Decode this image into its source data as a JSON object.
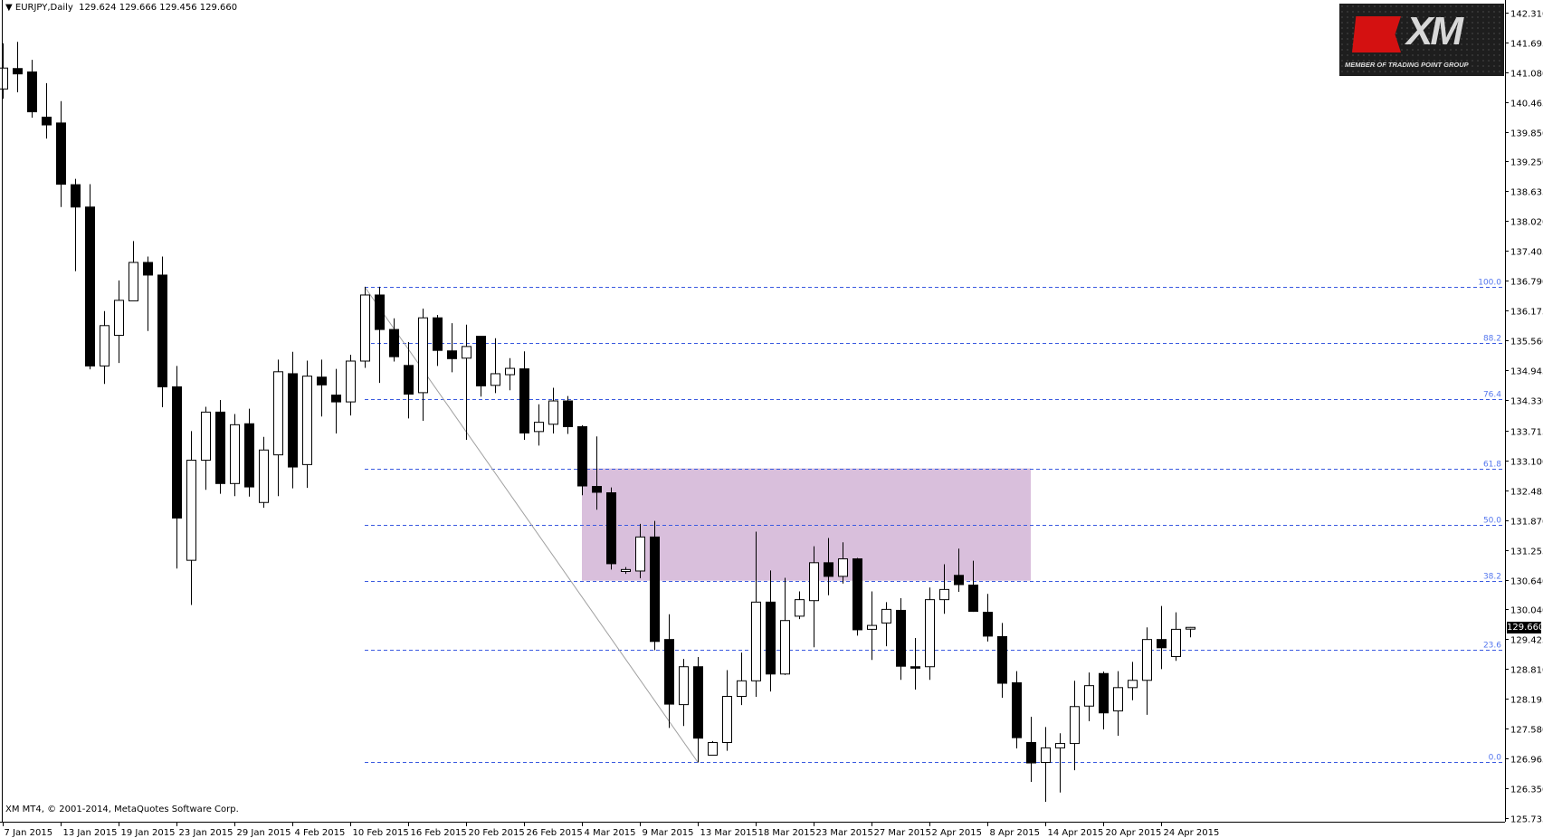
{
  "header": {
    "symbol": "EURJPY,Daily",
    "ohlc": "129.624 129.666 129.456 129.660"
  },
  "footer": {
    "copyright": "XM MT4, © 2001-2014, MetaQuotes Software Corp."
  },
  "logo": {
    "brand": "XM",
    "tagline": "MEMBER OF TRADING POINT GROUP"
  },
  "colors": {
    "bull_fill": "#ffffff",
    "bear_fill": "#000000",
    "fib_line": "#3a5ae0",
    "fib_label": "#5577ee",
    "zone_fill": "#d9bfdc",
    "trendline": "#a0a0a0"
  },
  "chart_data": {
    "type": "candlestick",
    "title": "EURJPY,Daily",
    "ylim": [
      125.735,
      142.31
    ],
    "y_ticks": [
      "142.310",
      "141.695",
      "141.080",
      "140.465",
      "139.850",
      "139.250",
      "138.635",
      "138.020",
      "137.405",
      "136.790",
      "136.175",
      "135.560",
      "134.945",
      "134.330",
      "133.715",
      "133.100",
      "132.485",
      "131.870",
      "131.255",
      "130.640",
      "130.040",
      "129.425",
      "128.810",
      "128.195",
      "127.580",
      "126.965",
      "126.350",
      "125.735"
    ],
    "current_price": "129.660",
    "x_labels": [
      {
        "label": "7 Jan 2015",
        "index": 0
      },
      {
        "label": "13 Jan 2015",
        "index": 4
      },
      {
        "label": "19 Jan 2015",
        "index": 8
      },
      {
        "label": "23 Jan 2015",
        "index": 12
      },
      {
        "label": "29 Jan 2015",
        "index": 16
      },
      {
        "label": "4 Feb 2015",
        "index": 20
      },
      {
        "label": "10 Feb 2015",
        "index": 24
      },
      {
        "label": "16 Feb 2015",
        "index": 28
      },
      {
        "label": "20 Feb 2015",
        "index": 32
      },
      {
        "label": "26 Feb 2015",
        "index": 36
      },
      {
        "label": "4 Mar 2015",
        "index": 40
      },
      {
        "label": "9 Mar 2015",
        "index": 44
      },
      {
        "label": "13 Mar 2015",
        "index": 48
      },
      {
        "label": "18 Mar 2015",
        "index": 52
      },
      {
        "label": "23 Mar 2015",
        "index": 56
      },
      {
        "label": "27 Mar 2015",
        "index": 60
      },
      {
        "label": "2 Apr 2015",
        "index": 64
      },
      {
        "label": "8 Apr 2015",
        "index": 68
      },
      {
        "label": "14 Apr 2015",
        "index": 72
      },
      {
        "label": "20 Apr 2015",
        "index": 76
      },
      {
        "label": "24 Apr 2015",
        "index": 80
      }
    ],
    "ohlc_fields": [
      "open",
      "high",
      "low",
      "close"
    ],
    "candles": [
      [
        140.74,
        141.68,
        140.54,
        141.17
      ],
      [
        141.16,
        141.71,
        140.67,
        141.05
      ],
      [
        141.09,
        141.34,
        140.15,
        140.27
      ],
      [
        140.16,
        140.86,
        139.72,
        140.0
      ],
      [
        140.04,
        140.49,
        138.31,
        138.78
      ],
      [
        138.77,
        138.89,
        136.99,
        138.31
      ],
      [
        138.31,
        138.78,
        134.97,
        135.04
      ],
      [
        135.04,
        136.17,
        134.67,
        135.87
      ],
      [
        135.67,
        136.8,
        135.1,
        136.39
      ],
      [
        136.38,
        137.61,
        136.38,
        137.17
      ],
      [
        137.17,
        137.29,
        135.76,
        136.91
      ],
      [
        136.91,
        137.29,
        134.19,
        134.61
      ],
      [
        134.61,
        135.04,
        130.87,
        131.91
      ],
      [
        131.04,
        133.7,
        130.12,
        133.1
      ],
      [
        133.1,
        134.2,
        132.49,
        134.09
      ],
      [
        134.09,
        134.34,
        132.41,
        132.62
      ],
      [
        132.62,
        134.05,
        132.36,
        133.83
      ],
      [
        133.85,
        134.16,
        132.35,
        132.55
      ],
      [
        132.23,
        133.58,
        132.12,
        133.31
      ],
      [
        133.21,
        135.17,
        132.36,
        134.92
      ],
      [
        134.88,
        135.33,
        132.52,
        132.96
      ],
      [
        133.01,
        135.15,
        132.53,
        134.83
      ],
      [
        134.81,
        135.17,
        134.0,
        134.65
      ],
      [
        134.44,
        134.98,
        133.65,
        134.3
      ],
      [
        134.3,
        135.27,
        134.02,
        135.14
      ],
      [
        135.14,
        136.67,
        135.0,
        136.5
      ],
      [
        136.5,
        136.67,
        134.69,
        135.79
      ],
      [
        135.79,
        136.02,
        135.13,
        135.23
      ],
      [
        135.05,
        135.53,
        133.96,
        134.46
      ],
      [
        134.49,
        136.22,
        133.91,
        136.03
      ],
      [
        136.03,
        136.09,
        135.04,
        135.36
      ],
      [
        135.35,
        135.92,
        134.91,
        135.19
      ],
      [
        135.2,
        135.89,
        133.52,
        135.44
      ],
      [
        135.65,
        135.65,
        134.41,
        134.63
      ],
      [
        134.64,
        135.61,
        134.48,
        134.88
      ],
      [
        134.86,
        135.2,
        134.54,
        134.99
      ],
      [
        134.98,
        135.34,
        133.52,
        133.66
      ],
      [
        133.69,
        134.25,
        133.4,
        133.88
      ],
      [
        133.84,
        134.59,
        133.65,
        134.32
      ],
      [
        134.32,
        134.42,
        133.64,
        133.79
      ],
      [
        133.79,
        133.82,
        132.38,
        132.57
      ],
      [
        132.56,
        133.59,
        132.08,
        132.44
      ],
      [
        132.43,
        132.54,
        130.85,
        130.97
      ],
      [
        130.81,
        130.9,
        130.76,
        130.85
      ],
      [
        130.82,
        131.79,
        130.67,
        131.52
      ],
      [
        131.52,
        131.85,
        129.19,
        129.37
      ],
      [
        129.41,
        129.93,
        127.59,
        128.08
      ],
      [
        128.07,
        129.01,
        127.63,
        128.85
      ],
      [
        128.85,
        129.05,
        126.88,
        127.38
      ],
      [
        127.03,
        127.32,
        127.03,
        127.29
      ],
      [
        127.29,
        128.78,
        127.12,
        128.24
      ],
      [
        128.24,
        129.14,
        128.06,
        128.56
      ],
      [
        128.56,
        131.63,
        128.23,
        130.18
      ],
      [
        130.18,
        130.83,
        128.34,
        128.7
      ],
      [
        128.7,
        130.68,
        128.68,
        129.8
      ],
      [
        129.89,
        130.4,
        129.83,
        130.23
      ],
      [
        130.21,
        131.33,
        129.25,
        130.99
      ],
      [
        130.99,
        131.5,
        130.32,
        130.71
      ],
      [
        130.71,
        131.41,
        130.56,
        131.07
      ],
      [
        131.07,
        131.09,
        129.49,
        129.61
      ],
      [
        129.62,
        130.4,
        128.99,
        129.7
      ],
      [
        129.75,
        130.18,
        129.27,
        130.03
      ],
      [
        130.01,
        130.26,
        128.58,
        128.86
      ],
      [
        128.85,
        129.44,
        128.38,
        128.82
      ],
      [
        128.85,
        130.48,
        128.58,
        130.23
      ],
      [
        130.23,
        130.96,
        129.94,
        130.44
      ],
      [
        130.73,
        131.28,
        130.39,
        130.54
      ],
      [
        130.53,
        131.03,
        129.98,
        129.99
      ],
      [
        129.97,
        130.35,
        129.37,
        129.48
      ],
      [
        129.47,
        129.75,
        128.21,
        128.51
      ],
      [
        128.52,
        128.76,
        127.17,
        127.39
      ],
      [
        127.29,
        127.82,
        126.48,
        126.87
      ],
      [
        126.88,
        127.61,
        126.07,
        127.18
      ],
      [
        127.18,
        127.48,
        126.26,
        127.27
      ],
      [
        127.27,
        128.56,
        126.72,
        128.03
      ],
      [
        128.04,
        128.73,
        127.73,
        128.46
      ],
      [
        128.71,
        128.75,
        127.56,
        127.9
      ],
      [
        127.94,
        128.76,
        127.43,
        128.42
      ],
      [
        128.42,
        128.95,
        128.16,
        128.57
      ],
      [
        128.57,
        129.66,
        127.86,
        129.41
      ],
      [
        129.41,
        130.1,
        128.8,
        129.24
      ],
      [
        129.06,
        129.97,
        128.97,
        129.62
      ],
      [
        129.624,
        129.666,
        129.456,
        129.66
      ]
    ],
    "fibonacci": {
      "high": 136.667,
      "low": 126.887,
      "start_index": 25,
      "end_index": 48,
      "levels": [
        {
          "label": "100.0",
          "ratio": 1.0
        },
        {
          "label": "88.2",
          "ratio": 0.882
        },
        {
          "label": "76.4",
          "ratio": 0.764
        },
        {
          "label": "61.8",
          "ratio": 0.618
        },
        {
          "label": "50.0",
          "ratio": 0.5
        },
        {
          "label": "38.2",
          "ratio": 0.382
        },
        {
          "label": "23.6",
          "ratio": 0.236
        },
        {
          "label": "0.0",
          "ratio": 0.0
        }
      ]
    },
    "zone": {
      "from_index": 40,
      "to_index": 71,
      "top": 132.93,
      "bottom": 130.62
    },
    "grid": false
  }
}
